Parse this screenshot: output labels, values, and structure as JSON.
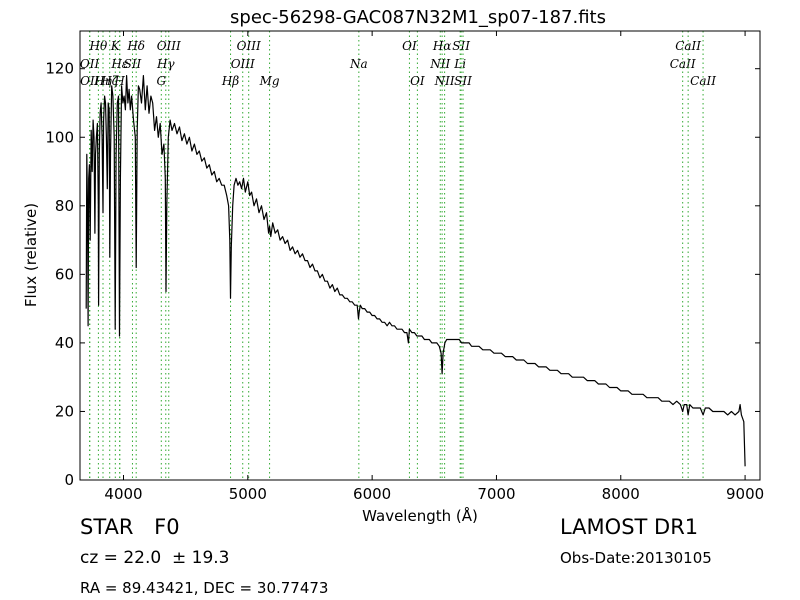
{
  "chart_data": {
    "type": "line",
    "title": "spec-56298-GAC087N32M1_sp07-187.fits",
    "xlabel": "Wavelength (Å)",
    "ylabel": "Flux (relative)",
    "xlim": [
      3650,
      9120
    ],
    "ylim": [
      0,
      131
    ],
    "xticks": [
      4000,
      5000,
      6000,
      7000,
      8000,
      9000
    ],
    "yticks": [
      0,
      20,
      40,
      60,
      80,
      100,
      120
    ],
    "grid": false,
    "series": [
      {
        "color": "#000000",
        "points": [
          [
            3700,
            50
          ],
          [
            3705,
            95
          ],
          [
            3710,
            80
          ],
          [
            3715,
            45
          ],
          [
            3720,
            88
          ],
          [
            3726,
            92
          ],
          [
            3732,
            70
          ],
          [
            3740,
            102
          ],
          [
            3748,
            90
          ],
          [
            3755,
            105
          ],
          [
            3763,
            100
          ],
          [
            3770,
            72
          ],
          [
            3775,
            95
          ],
          [
            3782,
            100
          ],
          [
            3790,
            104
          ],
          [
            3797,
            80
          ],
          [
            3800,
            51
          ],
          [
            3805,
            95
          ],
          [
            3812,
            107
          ],
          [
            3820,
            110
          ],
          [
            3828,
            100
          ],
          [
            3835,
            78
          ],
          [
            3840,
            105
          ],
          [
            3848,
            112
          ],
          [
            3855,
            110
          ],
          [
            3862,
            100
          ],
          [
            3870,
            85
          ],
          [
            3877,
            110
          ],
          [
            3885,
            108
          ],
          [
            3890,
            65
          ],
          [
            3895,
            95
          ],
          [
            3905,
            115
          ],
          [
            3915,
            112
          ],
          [
            3925,
            100
          ],
          [
            3933,
            44
          ],
          [
            3940,
            95
          ],
          [
            3950,
            110
          ],
          [
            3960,
            112
          ],
          [
            3968,
            42
          ],
          [
            3975,
            88
          ],
          [
            3985,
            115
          ],
          [
            3995,
            110
          ],
          [
            4005,
            112
          ],
          [
            4015,
            108
          ],
          [
            4025,
            118
          ],
          [
            4035,
            110
          ],
          [
            4045,
            114
          ],
          [
            4055,
            108
          ],
          [
            4065,
            112
          ],
          [
            4080,
            105
          ],
          [
            4095,
            100
          ],
          [
            4102,
            62
          ],
          [
            4110,
            102
          ],
          [
            4120,
            115
          ],
          [
            4130,
            114
          ],
          [
            4145,
            110
          ],
          [
            4160,
            118
          ],
          [
            4175,
            108
          ],
          [
            4190,
            115
          ],
          [
            4205,
            107
          ],
          [
            4220,
            112
          ],
          [
            4235,
            110
          ],
          [
            4250,
            102
          ],
          [
            4265,
            106
          ],
          [
            4280,
            100
          ],
          [
            4295,
            104
          ],
          [
            4310,
            95
          ],
          [
            4325,
            98
          ],
          [
            4336,
            88
          ],
          [
            4342,
            55
          ],
          [
            4348,
            80
          ],
          [
            4360,
            100
          ],
          [
            4375,
            105
          ],
          [
            4390,
            102
          ],
          [
            4410,
            104
          ],
          [
            4430,
            101
          ],
          [
            4450,
            103
          ],
          [
            4470,
            99
          ],
          [
            4490,
            101
          ],
          [
            4510,
            98
          ],
          [
            4530,
            100
          ],
          [
            4550,
            96
          ],
          [
            4570,
            98
          ],
          [
            4590,
            95
          ],
          [
            4610,
            96
          ],
          [
            4630,
            93
          ],
          [
            4650,
            94
          ],
          [
            4670,
            91
          ],
          [
            4690,
            92
          ],
          [
            4710,
            89
          ],
          [
            4730,
            90
          ],
          [
            4750,
            87
          ],
          [
            4770,
            88
          ],
          [
            4790,
            86
          ],
          [
            4810,
            86
          ],
          [
            4830,
            83
          ],
          [
            4845,
            80
          ],
          [
            4855,
            70
          ],
          [
            4861,
            53
          ],
          [
            4867,
            68
          ],
          [
            4878,
            80
          ],
          [
            4890,
            86
          ],
          [
            4905,
            88
          ],
          [
            4920,
            86
          ],
          [
            4935,
            87
          ],
          [
            4950,
            85
          ],
          [
            4965,
            88
          ],
          [
            4980,
            84
          ],
          [
            5000,
            87
          ],
          [
            5015,
            83
          ],
          [
            5030,
            84
          ],
          [
            5050,
            80
          ],
          [
            5070,
            82
          ],
          [
            5090,
            78
          ],
          [
            5110,
            80
          ],
          [
            5130,
            76
          ],
          [
            5150,
            78
          ],
          [
            5167,
            72
          ],
          [
            5175,
            74
          ],
          [
            5185,
            71
          ],
          [
            5200,
            75
          ],
          [
            5220,
            72
          ],
          [
            5240,
            73
          ],
          [
            5260,
            70
          ],
          [
            5280,
            71
          ],
          [
            5300,
            69
          ],
          [
            5320,
            70
          ],
          [
            5340,
            67
          ],
          [
            5360,
            68
          ],
          [
            5380,
            66
          ],
          [
            5400,
            67
          ],
          [
            5420,
            65
          ],
          [
            5440,
            66
          ],
          [
            5460,
            64
          ],
          [
            5480,
            64
          ],
          [
            5500,
            62
          ],
          [
            5520,
            63
          ],
          [
            5540,
            61
          ],
          [
            5560,
            61
          ],
          [
            5580,
            59
          ],
          [
            5600,
            60
          ],
          [
            5620,
            58
          ],
          [
            5640,
            58
          ],
          [
            5660,
            56
          ],
          [
            5680,
            57
          ],
          [
            5700,
            55
          ],
          [
            5720,
            56
          ],
          [
            5740,
            54
          ],
          [
            5760,
            54
          ],
          [
            5780,
            53
          ],
          [
            5800,
            53
          ],
          [
            5820,
            52
          ],
          [
            5840,
            52
          ],
          [
            5860,
            51
          ],
          [
            5880,
            51
          ],
          [
            5890,
            47
          ],
          [
            5896,
            49
          ],
          [
            5905,
            51
          ],
          [
            5920,
            50
          ],
          [
            5940,
            50
          ],
          [
            5960,
            49
          ],
          [
            5980,
            49
          ],
          [
            6000,
            48
          ],
          [
            6020,
            48
          ],
          [
            6040,
            47
          ],
          [
            6060,
            47
          ],
          [
            6080,
            46
          ],
          [
            6100,
            46
          ],
          [
            6120,
            45
          ],
          [
            6140,
            46
          ],
          [
            6160,
            45
          ],
          [
            6180,
            45
          ],
          [
            6200,
            44
          ],
          [
            6220,
            44
          ],
          [
            6240,
            44
          ],
          [
            6260,
            43
          ],
          [
            6280,
            43
          ],
          [
            6292,
            40
          ],
          [
            6300,
            44
          ],
          [
            6320,
            43
          ],
          [
            6340,
            43
          ],
          [
            6360,
            42
          ],
          [
            6380,
            42
          ],
          [
            6400,
            42
          ],
          [
            6420,
            41
          ],
          [
            6440,
            41
          ],
          [
            6460,
            41
          ],
          [
            6480,
            40
          ],
          [
            6500,
            40
          ],
          [
            6520,
            40
          ],
          [
            6540,
            39
          ],
          [
            6555,
            37
          ],
          [
            6563,
            31
          ],
          [
            6571,
            37
          ],
          [
            6585,
            40
          ],
          [
            6600,
            41
          ],
          [
            6620,
            41
          ],
          [
            6640,
            41
          ],
          [
            6660,
            41
          ],
          [
            6680,
            41
          ],
          [
            6700,
            41
          ],
          [
            6720,
            40
          ],
          [
            6740,
            40
          ],
          [
            6760,
            40
          ],
          [
            6780,
            40
          ],
          [
            6800,
            39
          ],
          [
            6830,
            39
          ],
          [
            6860,
            39
          ],
          [
            6890,
            38
          ],
          [
            6920,
            38
          ],
          [
            6950,
            38
          ],
          [
            6980,
            37
          ],
          [
            7010,
            37
          ],
          [
            7040,
            37
          ],
          [
            7070,
            36
          ],
          [
            7100,
            36
          ],
          [
            7130,
            36
          ],
          [
            7160,
            35
          ],
          [
            7190,
            35
          ],
          [
            7220,
            35
          ],
          [
            7250,
            34
          ],
          [
            7280,
            34
          ],
          [
            7310,
            34
          ],
          [
            7340,
            33
          ],
          [
            7370,
            33
          ],
          [
            7400,
            33
          ],
          [
            7430,
            32
          ],
          [
            7460,
            32
          ],
          [
            7490,
            32
          ],
          [
            7520,
            31
          ],
          [
            7550,
            31
          ],
          [
            7580,
            31
          ],
          [
            7610,
            30
          ],
          [
            7640,
            30
          ],
          [
            7670,
            30
          ],
          [
            7700,
            30
          ],
          [
            7730,
            29
          ],
          [
            7760,
            29
          ],
          [
            7790,
            29
          ],
          [
            7820,
            28
          ],
          [
            7850,
            28
          ],
          [
            7880,
            28
          ],
          [
            7910,
            27
          ],
          [
            7940,
            27
          ],
          [
            7970,
            27
          ],
          [
            8000,
            26
          ],
          [
            8030,
            26
          ],
          [
            8060,
            26
          ],
          [
            8090,
            25
          ],
          [
            8120,
            25
          ],
          [
            8150,
            25
          ],
          [
            8180,
            25
          ],
          [
            8210,
            24
          ],
          [
            8240,
            24
          ],
          [
            8270,
            24
          ],
          [
            8300,
            24
          ],
          [
            8330,
            23
          ],
          [
            8360,
            23
          ],
          [
            8390,
            23
          ],
          [
            8420,
            22
          ],
          [
            8450,
            23
          ],
          [
            8480,
            22
          ],
          [
            8498,
            20
          ],
          [
            8510,
            22
          ],
          [
            8530,
            22
          ],
          [
            8542,
            19
          ],
          [
            8555,
            22
          ],
          [
            8580,
            21
          ],
          [
            8610,
            21
          ],
          [
            8640,
            21
          ],
          [
            8662,
            19
          ],
          [
            8680,
            21
          ],
          [
            8710,
            21
          ],
          [
            8740,
            20
          ],
          [
            8770,
            20
          ],
          [
            8800,
            20
          ],
          [
            8830,
            20
          ],
          [
            8860,
            19
          ],
          [
            8890,
            20
          ],
          [
            8920,
            19
          ],
          [
            8950,
            20
          ],
          [
            8960,
            22
          ],
          [
            8970,
            19
          ],
          [
            8980,
            18
          ],
          [
            8990,
            17
          ],
          [
            8995,
            10
          ],
          [
            9000,
            4
          ]
        ]
      }
    ],
    "lines": [
      {
        "wavelength": 3727,
        "label": "OII",
        "row": 1
      },
      {
        "wavelength": 3729,
        "label": "OII",
        "row": 2
      },
      {
        "wavelength": 3798,
        "label": "Hθ",
        "row": 0
      },
      {
        "wavelength": 3835,
        "label": "Hη",
        "row": 2
      },
      {
        "wavelength": 3889,
        "label": "Hζ",
        "row": 2
      },
      {
        "wavelength": 3934,
        "label": "K",
        "row": 0
      },
      {
        "wavelength": 3969,
        "label": "H",
        "row": 2
      },
      {
        "wavelength": 3970,
        "label": "Hε",
        "row": 1
      },
      {
        "wavelength": 4072,
        "label": "SII",
        "row": 1
      },
      {
        "wavelength": 4102,
        "label": "Hδ",
        "row": 0
      },
      {
        "wavelength": 4304,
        "label": "G",
        "row": 2
      },
      {
        "wavelength": 4340,
        "label": "Hγ",
        "row": 1
      },
      {
        "wavelength": 4364,
        "label": "OIII",
        "row": 0
      },
      {
        "wavelength": 4861,
        "label": "Hβ",
        "row": 2
      },
      {
        "wavelength": 4959,
        "label": "OIII",
        "row": 1
      },
      {
        "wavelength": 5007,
        "label": "OIII",
        "row": 0
      },
      {
        "wavelength": 5175,
        "label": "Mg",
        "row": 2
      },
      {
        "wavelength": 5893,
        "label": "Na",
        "row": 1
      },
      {
        "wavelength": 6300,
        "label": "OI",
        "row": 0
      },
      {
        "wavelength": 6364,
        "label": "OI",
        "row": 2
      },
      {
        "wavelength": 6548,
        "label": "NII",
        "row": 1
      },
      {
        "wavelength": 6563,
        "label": "Hα",
        "row": 0
      },
      {
        "wavelength": 6583,
        "label": "NII",
        "row": 2
      },
      {
        "wavelength": 6708,
        "label": "Li",
        "row": 1
      },
      {
        "wavelength": 6716,
        "label": "SII",
        "row": 0
      },
      {
        "wavelength": 6731,
        "label": "SII",
        "row": 2
      },
      {
        "wavelength": 8498,
        "label": "CaII",
        "row": 1
      },
      {
        "wavelength": 8542,
        "label": "CaII",
        "row": 0
      },
      {
        "wavelength": 8662,
        "label": "CaII",
        "row": 2
      }
    ],
    "line_color": "#33aa33"
  },
  "info": {
    "object_class": "STAR",
    "subclass": "F0",
    "redshift": "cz = 22.0  ± 19.3",
    "coords": "RA = 89.43421, DEC = 30.77473",
    "release": "LAMOST DR1",
    "obs_date": "Obs-Date:20130105"
  }
}
